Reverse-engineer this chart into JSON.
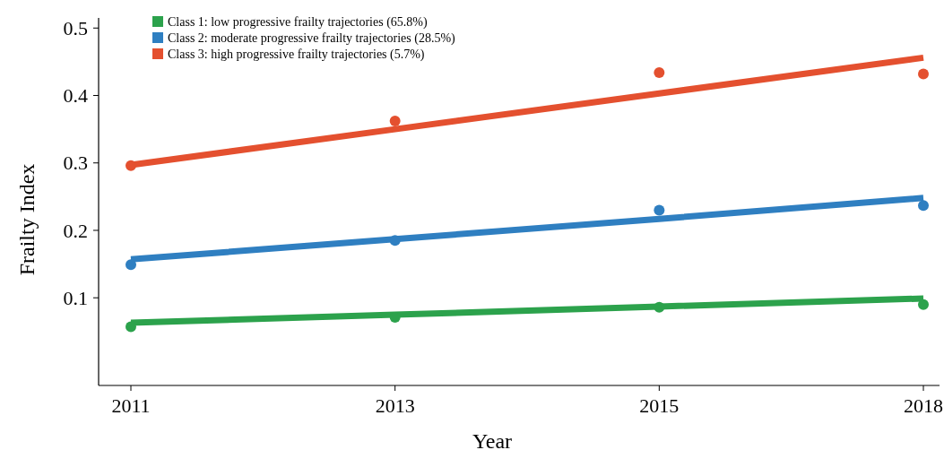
{
  "chart_data": {
    "type": "scatter",
    "xlabel": "Year",
    "ylabel": "Frailty Index",
    "categories": [
      "2011",
      "2013",
      "2015",
      "2018"
    ],
    "ylim": [
      -0.03,
      0.515
    ],
    "yticks": [
      0.1,
      0.2,
      0.3,
      0.4,
      0.5
    ],
    "grid": false,
    "legend": "top left",
    "series": [
      {
        "type": "line",
        "marker": "none",
        "color": "#2ca24c",
        "values": [
          0.063,
          0.075,
          0.087,
          0.099
        ]
      },
      {
        "type": "line",
        "marker": "none",
        "color": "#2f7fc1",
        "values": [
          0.157,
          0.187,
          0.217,
          0.248
        ]
      },
      {
        "type": "line",
        "marker": "none",
        "color": "#e4502f",
        "values": [
          0.297,
          0.35,
          0.403,
          0.456
        ]
      },
      {
        "name": "Class 1: low progressive frailty trajectories (65.8%)",
        "marker": "circle",
        "color": "#2ca24c",
        "values": [
          0.057,
          0.071,
          0.086,
          0.09
        ]
      },
      {
        "name": "Class 2: moderate progressive frailty trajectories (28.5%)",
        "marker": "circle",
        "color": "#2f7fc1",
        "values": [
          0.149,
          0.185,
          0.23,
          0.237
        ]
      },
      {
        "name": "Class 3: high progressive frailty trajectories (5.7%)",
        "marker": "circle",
        "color": "#e4502f",
        "values": [
          0.296,
          0.362,
          0.434,
          0.432
        ]
      }
    ]
  }
}
